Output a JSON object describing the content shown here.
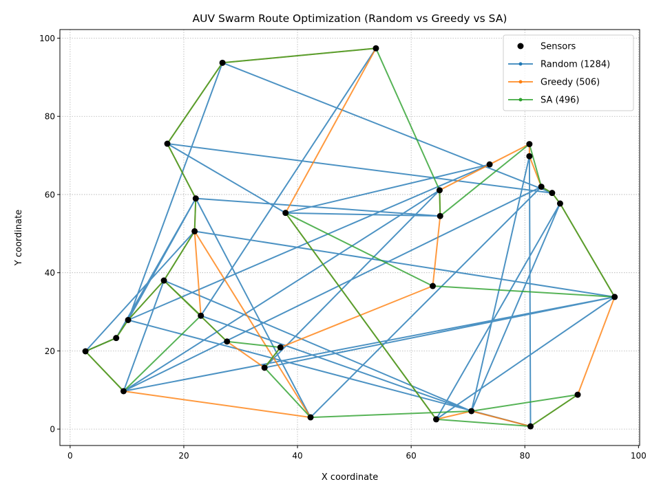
{
  "chart_data": {
    "type": "line",
    "title": "AUV Swarm Route Optimization (Random vs Greedy vs SA)",
    "xlabel": "X coordinate",
    "ylabel": "Y coordinate",
    "xlim": [
      -1.8,
      100.2
    ],
    "ylim": [
      -4.2,
      102.2
    ],
    "xticks": [
      0,
      20,
      40,
      60,
      80,
      100
    ],
    "yticks": [
      0,
      20,
      40,
      60,
      80,
      100
    ],
    "grid": true,
    "legend_position": "top-right",
    "sensors": {
      "name": "Sensors",
      "color": "#000000",
      "points": [
        [
          2.7,
          19.9
        ],
        [
          8.1,
          23.3
        ],
        [
          10.2,
          27.9
        ],
        [
          9.4,
          9.7
        ],
        [
          16.5,
          38.0
        ],
        [
          17.1,
          73.0
        ],
        [
          22.1,
          59.0
        ],
        [
          21.9,
          50.6
        ],
        [
          23.0,
          29.0
        ],
        [
          26.8,
          93.7
        ],
        [
          27.6,
          22.4
        ],
        [
          34.2,
          15.7
        ],
        [
          37.0,
          20.9
        ],
        [
          37.9,
          55.3
        ],
        [
          42.3,
          3.0
        ],
        [
          53.8,
          97.4
        ],
        [
          63.8,
          36.6
        ],
        [
          64.4,
          2.5
        ],
        [
          65.0,
          61.1
        ],
        [
          65.1,
          54.5
        ],
        [
          70.6,
          4.6
        ],
        [
          73.8,
          67.7
        ],
        [
          80.8,
          72.9
        ],
        [
          80.8,
          69.8
        ],
        [
          81.0,
          0.7
        ],
        [
          82.9,
          62.0
        ],
        [
          84.8,
          60.4
        ],
        [
          86.2,
          57.7
        ],
        [
          89.3,
          8.8
        ],
        [
          95.8,
          33.8
        ]
      ]
    },
    "series": [
      {
        "name": "Random (1284)",
        "color": "#1f77b4",
        "path": [
          [
            37.9,
            55.3
          ],
          [
            73.8,
            67.7
          ],
          [
            10.2,
            27.9
          ],
          [
            26.8,
            93.7
          ],
          [
            84.8,
            60.4
          ],
          [
            17.1,
            73.0
          ],
          [
            37.9,
            55.3
          ],
          [
            65.1,
            54.5
          ],
          [
            22.1,
            59.0
          ],
          [
            42.3,
            3.0
          ],
          [
            82.9,
            62.0
          ],
          [
            9.4,
            9.7
          ],
          [
            65.0,
            61.1
          ],
          [
            34.2,
            15.7
          ],
          [
            95.8,
            33.8
          ],
          [
            21.9,
            50.6
          ],
          [
            2.7,
            19.9
          ],
          [
            8.1,
            23.3
          ],
          [
            22.1,
            59.0
          ],
          [
            10.2,
            27.9
          ],
          [
            81.0,
            0.7
          ],
          [
            80.8,
            69.8
          ],
          [
            70.6,
            4.6
          ],
          [
            16.5,
            38.0
          ],
          [
            9.4,
            9.7
          ],
          [
            95.8,
            33.8
          ],
          [
            64.4,
            2.5
          ],
          [
            86.2,
            57.7
          ],
          [
            70.6,
            4.6
          ],
          [
            23.0,
            29.0
          ],
          [
            53.8,
            97.4
          ]
        ]
      },
      {
        "name": "Greedy (506)",
        "color": "#ff7f0e",
        "path": [
          [
            37.9,
            55.3
          ],
          [
            53.8,
            97.4
          ],
          [
            26.8,
            93.7
          ],
          [
            17.1,
            73.0
          ],
          [
            22.1,
            59.0
          ],
          [
            21.9,
            50.6
          ],
          [
            16.5,
            38.0
          ],
          [
            10.2,
            27.9
          ],
          [
            8.1,
            23.3
          ],
          [
            2.7,
            19.9
          ],
          [
            9.4,
            9.7
          ],
          [
            42.3,
            3.0
          ],
          [
            21.9,
            50.6
          ],
          [
            23.0,
            29.0
          ],
          [
            16.5,
            38.0
          ],
          [
            27.6,
            22.4
          ],
          [
            34.2,
            15.7
          ],
          [
            37.0,
            20.9
          ],
          [
            63.8,
            36.6
          ],
          [
            65.1,
            54.5
          ],
          [
            65.0,
            61.1
          ],
          [
            73.8,
            67.7
          ],
          [
            80.8,
            72.9
          ],
          [
            80.8,
            69.8
          ],
          [
            82.9,
            62.0
          ],
          [
            84.8,
            60.4
          ],
          [
            86.2,
            57.7
          ],
          [
            95.8,
            33.8
          ],
          [
            89.3,
            8.8
          ],
          [
            81.0,
            0.7
          ],
          [
            70.6,
            4.6
          ],
          [
            64.4,
            2.5
          ],
          [
            37.9,
            55.3
          ]
        ]
      },
      {
        "name": "SA (496)",
        "color": "#2ca02c",
        "path": [
          [
            53.8,
            97.4
          ],
          [
            26.8,
            93.7
          ],
          [
            17.1,
            73.0
          ],
          [
            22.1,
            59.0
          ],
          [
            21.9,
            50.6
          ],
          [
            16.5,
            38.0
          ],
          [
            10.2,
            27.9
          ],
          [
            8.1,
            23.3
          ],
          [
            2.7,
            19.9
          ],
          [
            9.4,
            9.7
          ],
          [
            23.0,
            29.0
          ],
          [
            16.5,
            38.0
          ],
          [
            27.6,
            22.4
          ],
          [
            37.0,
            20.9
          ],
          [
            34.2,
            15.7
          ],
          [
            42.3,
            3.0
          ],
          [
            70.6,
            4.6
          ],
          [
            89.3,
            8.8
          ],
          [
            81.0,
            0.7
          ],
          [
            64.4,
            2.5
          ],
          [
            37.9,
            55.3
          ],
          [
            63.8,
            36.6
          ],
          [
            95.8,
            33.8
          ],
          [
            86.2,
            57.7
          ],
          [
            84.8,
            60.4
          ],
          [
            82.9,
            62.0
          ],
          [
            80.8,
            72.9
          ],
          [
            65.1,
            54.5
          ],
          [
            65.0,
            61.1
          ],
          [
            53.8,
            97.4
          ]
        ]
      }
    ]
  }
}
